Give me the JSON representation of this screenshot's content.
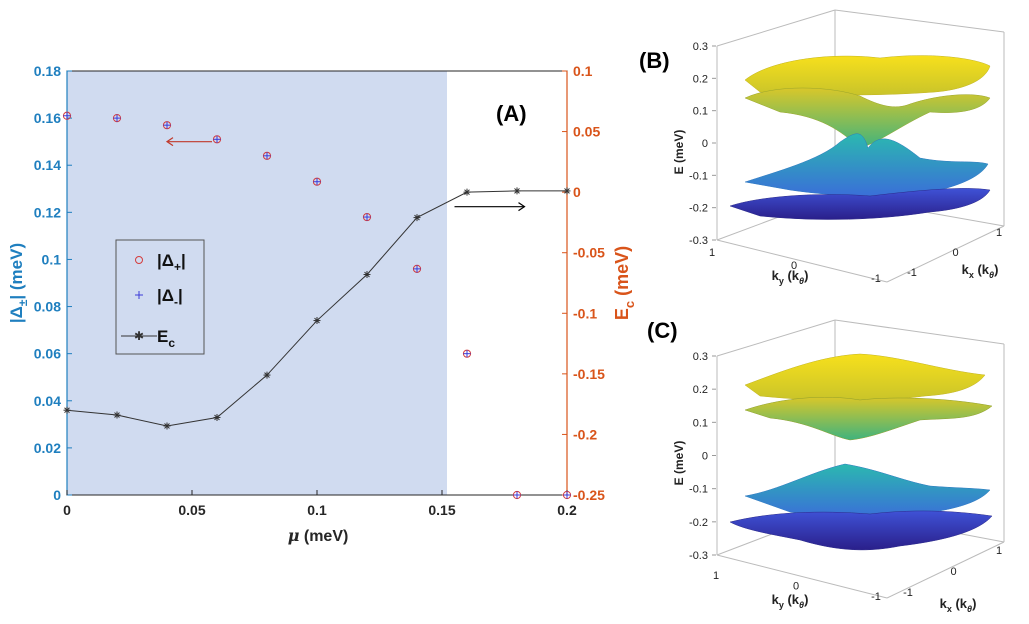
{
  "figure": {
    "panel_labels": {
      "a": "(A)",
      "b": "(B)",
      "c": "(C)"
    }
  },
  "chart_data": [
    {
      "type": "scatter",
      "id": "panel-A",
      "x": [
        0,
        0.02,
        0.04,
        0.06,
        0.08,
        0.1,
        0.12,
        0.14,
        0.16,
        0.18,
        0.2
      ],
      "xlabel_mu": "μ",
      "xlabel_unit": "(meV)",
      "xlim": [
        0,
        0.2
      ],
      "x_ticks": [
        "0",
        "0.05",
        "0.1",
        "0.15",
        "0.2"
      ],
      "left_axis": {
        "label_main": "|Δ",
        "label_sub": "±",
        "label_tail": "| (meV)",
        "ylim": [
          0,
          0.18
        ],
        "ticks": [
          "0",
          "0.02",
          "0.04",
          "0.06",
          "0.08",
          "0.1",
          "0.12",
          "0.14",
          "0.16",
          "0.18"
        ],
        "color": "#1f7fbf"
      },
      "right_axis": {
        "label_main": "E",
        "label_sub": "c",
        "label_tail": " (meV)",
        "ylim": [
          -0.25,
          0.1
        ],
        "ticks": [
          "-0.25",
          "-0.2",
          "-0.15",
          "-0.1",
          "-0.05",
          "0",
          "0.05",
          "0.1"
        ],
        "color": "#d9541a"
      },
      "shaded_region_x": [
        0,
        0.152
      ],
      "series": [
        {
          "name": "|Δ+|",
          "legend_main": "|Δ",
          "legend_sub": "+",
          "legend_tail": "|",
          "axis": "left",
          "marker": "circle",
          "color": "#d43c3c",
          "values": [
            0.161,
            0.16,
            0.157,
            0.151,
            0.144,
            0.133,
            0.118,
            0.096,
            0.06,
            0.0,
            0.0
          ]
        },
        {
          "name": "|Δ-|",
          "legend_main": "|Δ",
          "legend_sub": "-",
          "legend_tail": "|",
          "axis": "left",
          "marker": "plus",
          "color": "#3b3bd9",
          "values": [
            0.161,
            0.16,
            0.157,
            0.151,
            0.144,
            0.133,
            0.118,
            0.096,
            0.06,
            0.0,
            0.0
          ]
        },
        {
          "name": "Ec",
          "legend_main": "E",
          "legend_sub": "c",
          "legend_tail": "",
          "axis": "right",
          "marker": "star-line",
          "color": "#333333",
          "values": [
            -0.18,
            -0.184,
            -0.193,
            -0.186,
            -0.151,
            -0.106,
            -0.068,
            -0.021,
            0.0,
            0.001,
            0.001
          ]
        }
      ],
      "arrows": [
        {
          "direction": "left",
          "color": "#c0392b",
          "from": [
            0.058,
            0.15
          ],
          "to": [
            0.04,
            0.15
          ],
          "axis": "left"
        },
        {
          "direction": "right",
          "color": "#000000",
          "from": [
            0.155,
            -0.012
          ],
          "to": [
            0.183,
            -0.012
          ],
          "axis": "right"
        }
      ]
    },
    {
      "type": "surface3d",
      "id": "panel-B",
      "zlabel": "E (meV)",
      "z_ticks": [
        "0.3",
        "0.2",
        "0.1",
        "0",
        "-0.1",
        "-0.2",
        "-0.3"
      ],
      "ky_label_main": "k",
      "ky_label_sub": "y",
      "ky_label_tail": "(k",
      "ky_label_theta": "θ",
      "ky_label_end": ")",
      "kx_label_main": "k",
      "kx_label_sub": "x",
      "kx_label_tail": "(k",
      "kx_label_theta": "θ",
      "kx_label_end": ")",
      "ky_ticks": [
        "1",
        "0",
        "-1"
      ],
      "kx_ticks": [
        "-1",
        "0",
        "1"
      ],
      "bands_center_E": [
        0.2,
        0.1,
        -0.1,
        -0.2
      ]
    },
    {
      "type": "surface3d",
      "id": "panel-C",
      "zlabel": "E (meV)",
      "z_ticks": [
        "0.3",
        "0.2",
        "0.1",
        "0",
        "-0.1",
        "-0.2",
        "-0.3"
      ],
      "ky_label_main": "k",
      "ky_label_sub": "y",
      "ky_label_tail": "(k",
      "ky_label_theta": "θ",
      "ky_label_end": ")",
      "kx_label_main": "k",
      "kx_label_sub": "x",
      "kx_label_tail": "(k",
      "kx_label_theta": "θ",
      "kx_label_end": ")",
      "ky_ticks": [
        "1",
        "0",
        "-1"
      ],
      "kx_ticks": [
        "-1",
        "0",
        "1"
      ],
      "bands_center_E": [
        0.22,
        0.12,
        -0.12,
        -0.22
      ]
    }
  ]
}
